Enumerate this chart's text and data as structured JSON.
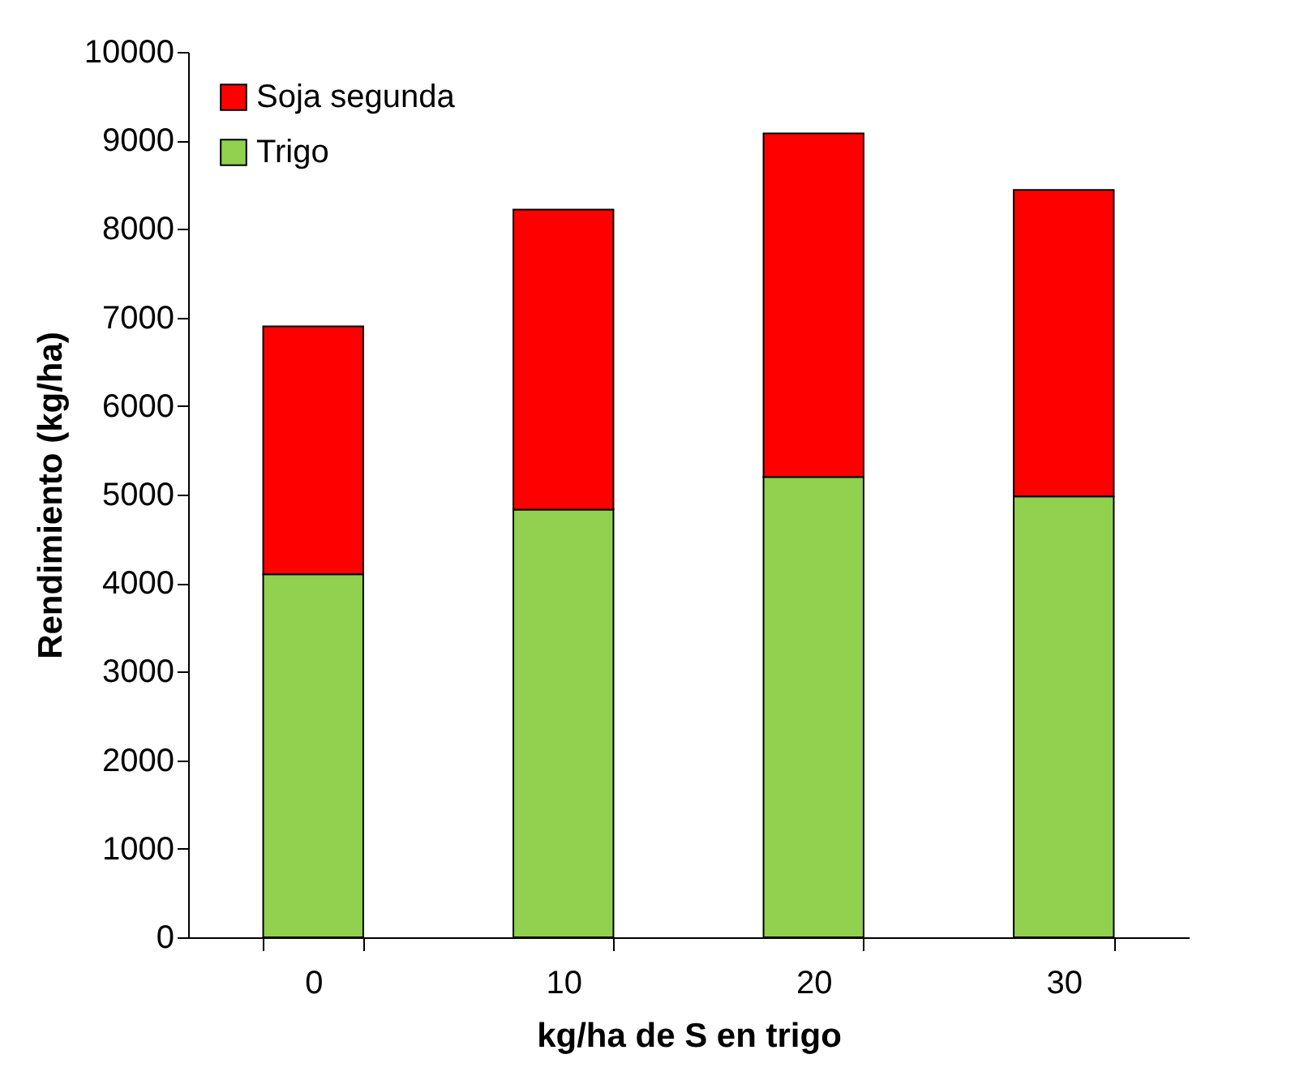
{
  "chart_data": {
    "type": "bar",
    "stacked": true,
    "xlabel": "kg/ha de S en trigo",
    "ylabel": "Rendimiento (kg/ha)",
    "categories": [
      "0",
      "10",
      "20",
      "30"
    ],
    "series": [
      {
        "name": "Trigo",
        "color": "#92d050",
        "values": [
          4100,
          4830,
          5200,
          4980
        ]
      },
      {
        "name": "Soja segunda",
        "color": "#ff0000",
        "values": [
          2800,
          3390,
          3880,
          3460
        ]
      }
    ],
    "ylim": [
      0,
      10000
    ],
    "yticks": [
      0,
      1000,
      2000,
      3000,
      4000,
      5000,
      6000,
      7000,
      8000,
      9000,
      10000
    ],
    "legend": "top left"
  }
}
